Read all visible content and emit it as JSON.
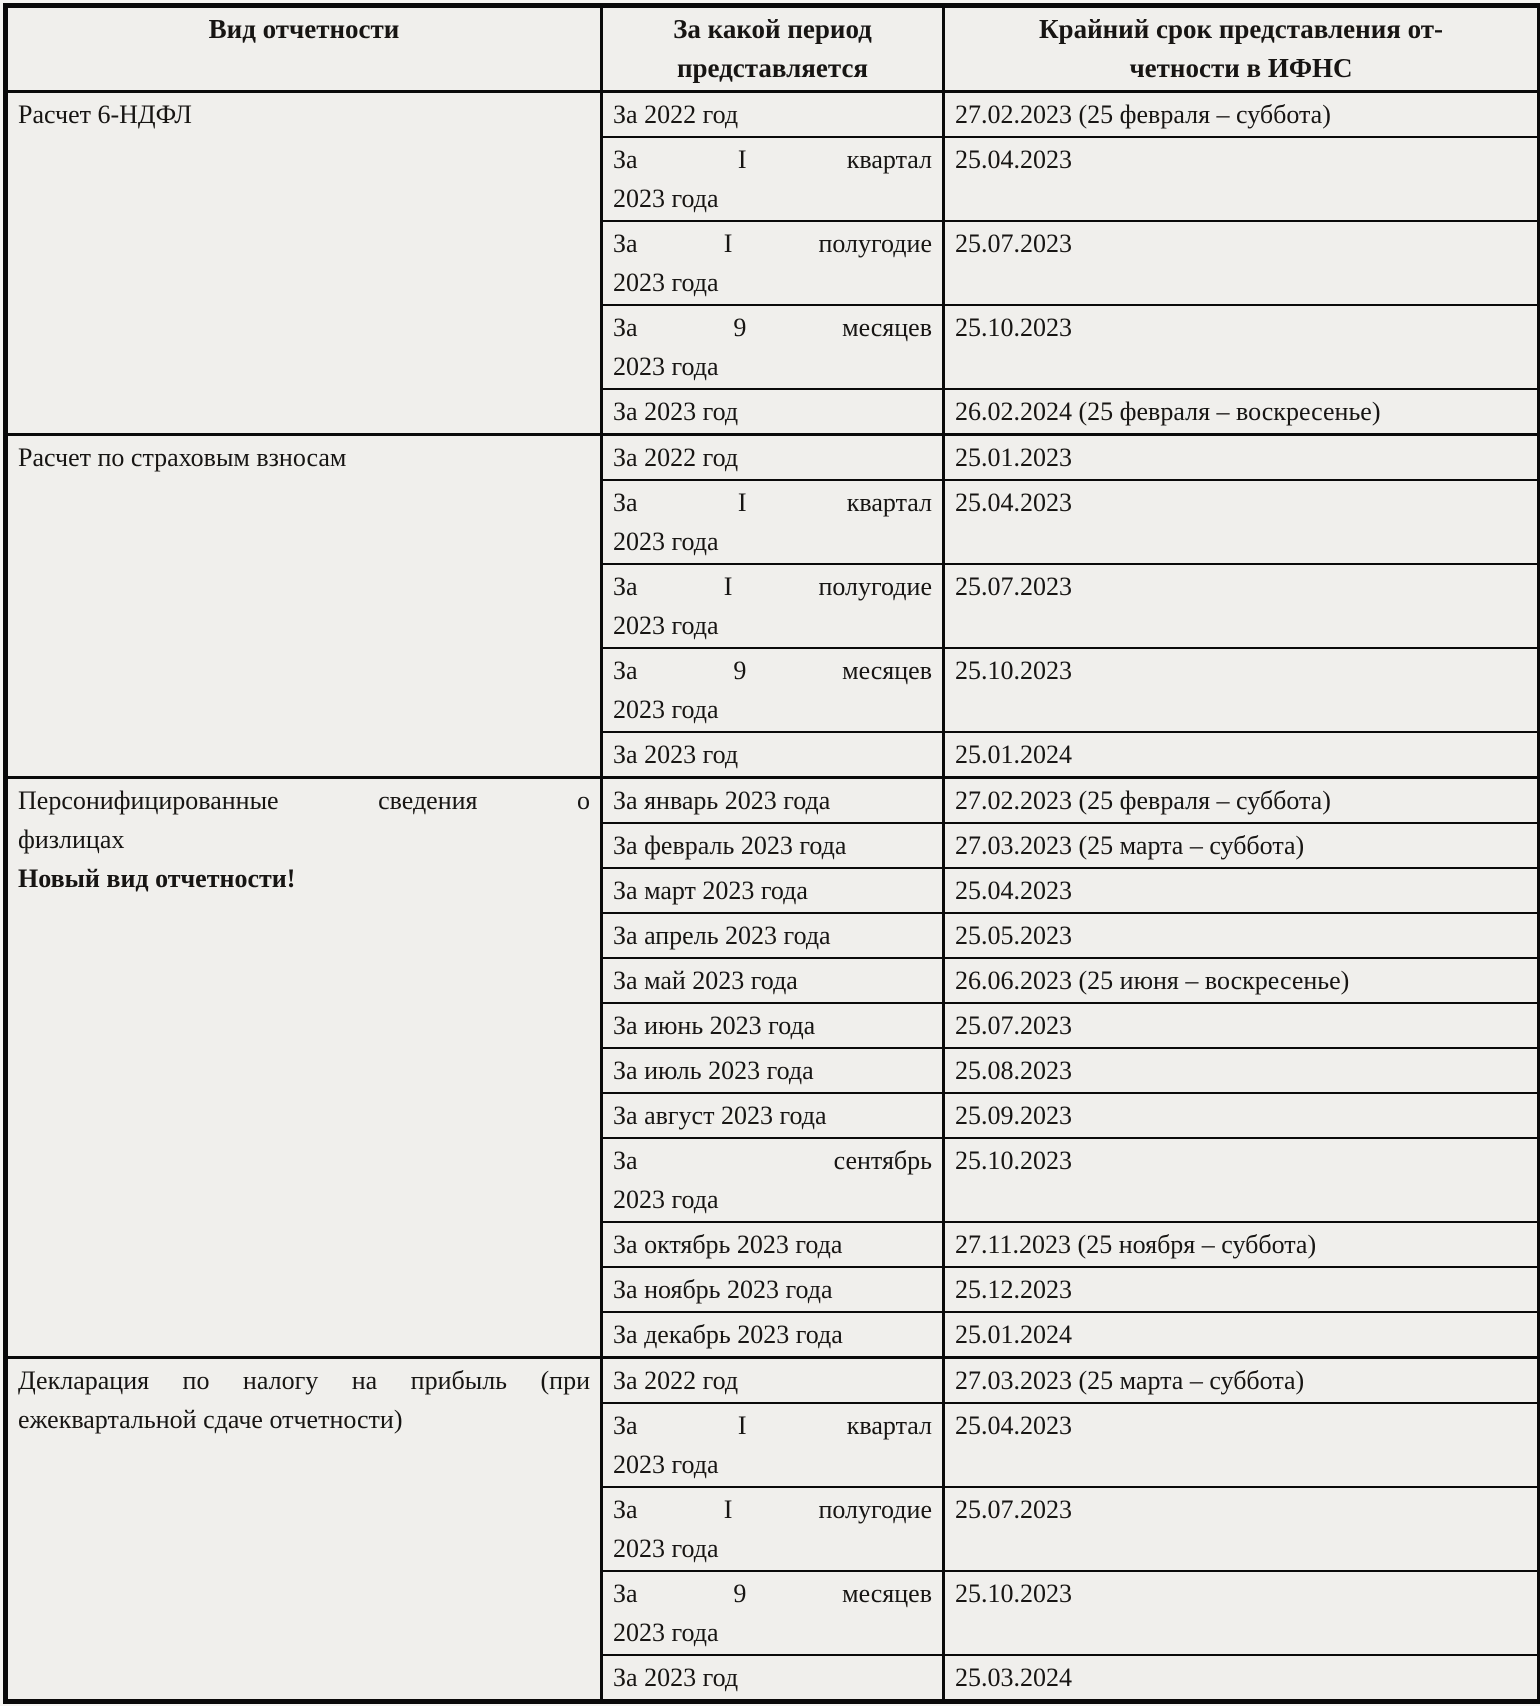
{
  "colors": {
    "cell_background": "#f0efec",
    "outer_background": "#f6f5f2",
    "border": "#0a0a0a",
    "text": "#171513"
  },
  "header": {
    "col1": "Вид отчетности",
    "col2_line1": "За какой период",
    "col2_line2": "представляется",
    "col3_line1": "Крайний срок представления от-",
    "col3_line2": "четности в ИФНС"
  },
  "sections": [
    {
      "type_line1": "Расчет 6-НДФЛ",
      "rows": [
        {
          "period_line1": "За 2022 год",
          "deadline": "27.02.2023 (25 февраля – суббота)"
        },
        {
          "period_line1": "За I квартал",
          "period_line2": "2023 года",
          "deadline": "25.04.2023"
        },
        {
          "period_line1": "За I полугодие",
          "period_line2": "2023 года",
          "deadline": "25.07.2023"
        },
        {
          "period_line1": "За 9 месяцев",
          "period_line2": "2023 года",
          "deadline": "25.10.2023"
        },
        {
          "period_line1": "За 2023 год",
          "deadline": "26.02.2024 (25 февраля – воскресенье)"
        }
      ]
    },
    {
      "type_line1": "Расчет по страховым взносам",
      "rows": [
        {
          "period_line1": "За 2022 год",
          "deadline": "25.01.2023"
        },
        {
          "period_line1": "За I квартал",
          "period_line2": "2023 года",
          "deadline": "25.04.2023"
        },
        {
          "period_line1": "За I полугодие",
          "period_line2": "2023 года",
          "deadline": "25.07.2023"
        },
        {
          "period_line1": "За 9 месяцев",
          "period_line2": "2023 года",
          "deadline": "25.10.2023"
        },
        {
          "period_line1": "За 2023 год",
          "deadline": "25.01.2024"
        }
      ]
    },
    {
      "type_line1": "Персонифицированные сведения о",
      "type_line2": "физлицах",
      "type_bold": "Новый вид отчетности!",
      "rows": [
        {
          "period_line1": "За январь 2023 года",
          "deadline": "27.02.2023 (25 февраля – суббота)"
        },
        {
          "period_line1": "За февраль 2023 года",
          "deadline": "27.03.2023 (25 марта – суббота)"
        },
        {
          "period_line1": "За март 2023 года",
          "deadline": "25.04.2023"
        },
        {
          "period_line1": "За апрель 2023 года",
          "deadline": "25.05.2023"
        },
        {
          "period_line1": "За май 2023 года",
          "deadline": "26.06.2023 (25 июня – воскресенье)"
        },
        {
          "period_line1": "За июнь 2023 года",
          "deadline": "25.07.2023"
        },
        {
          "period_line1": "За июль 2023 года",
          "deadline": "25.08.2023"
        },
        {
          "period_line1": "За август 2023 года",
          "deadline": "25.09.2023"
        },
        {
          "period_line1": "За сентябрь",
          "period_line2": "2023 года",
          "deadline": "25.10.2023"
        },
        {
          "period_line1": "За октябрь 2023 года",
          "deadline": "27.11.2023 (25 ноября – суббота)"
        },
        {
          "period_line1": "За ноябрь 2023 года",
          "deadline": "25.12.2023"
        },
        {
          "period_line1": "За декабрь 2023 года",
          "deadline": "25.01.2024"
        }
      ]
    },
    {
      "type_line1": "Декларация по налогу на прибыль (при",
      "type_line2": "ежеквартальной сдаче отчетности)",
      "rows": [
        {
          "period_line1": "За 2022 год",
          "deadline": "27.03.2023 (25 марта – суббота)"
        },
        {
          "period_line1": "За I квартал",
          "period_line2": "2023 года",
          "deadline": "25.04.2023"
        },
        {
          "period_line1": "За I полугодие",
          "period_line2": "2023 года",
          "deadline": "25.07.2023"
        },
        {
          "period_line1": "За 9 месяцев",
          "period_line2": "2023 года",
          "deadline": "25.10.2023"
        },
        {
          "period_line1": "За 2023 год",
          "deadline": "25.03.2024"
        }
      ]
    }
  ]
}
